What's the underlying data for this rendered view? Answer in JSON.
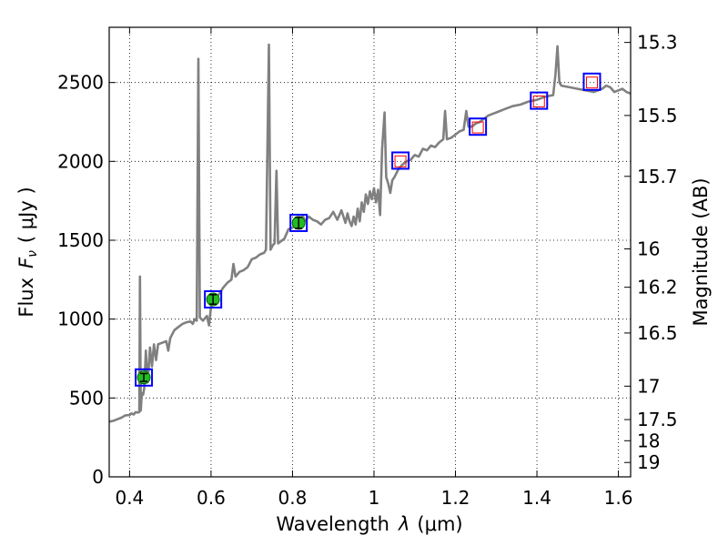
{
  "chart_data": {
    "type": "line",
    "title": "",
    "xlabel_main": "Wavelength",
    "xlabel_symbol": "λ",
    "xlabel_unit": "(μm)",
    "ylabel_main": "Flux",
    "ylabel_symbol": "F",
    "ylabel_subscript": "ν",
    "ylabel_unit": "( μJy )",
    "y2label": "Magnitude (AB)",
    "xlim": [
      0.35,
      1.63
    ],
    "ylim": [
      0,
      2850
    ],
    "grid": true,
    "x_ticks": [
      0.4,
      0.6,
      0.8,
      1.0,
      1.2,
      1.4,
      1.6
    ],
    "x_tick_labels": [
      "0.4",
      "0.6",
      "0.8",
      "1",
      "1.2",
      "1.4",
      "1.6"
    ],
    "y_ticks": [
      0,
      500,
      1000,
      1500,
      2000,
      2500
    ],
    "y_tick_labels": [
      "0",
      "500",
      "1000",
      "1500",
      "2000",
      "2500"
    ],
    "magnitude_ticks": [
      {
        "label": "15.3",
        "flux": 2754
      },
      {
        "label": "15.5",
        "flux": 2291
      },
      {
        "label": "15.7",
        "flux": 1905
      },
      {
        "label": "16",
        "flux": 1445
      },
      {
        "label": "16.2",
        "flux": 1202
      },
      {
        "label": "16.5",
        "flux": 912
      },
      {
        "label": "17",
        "flux": 575
      },
      {
        "label": "17.5",
        "flux": 363
      },
      {
        "label": "18",
        "flux": 229
      },
      {
        "label": "19",
        "flux": 91
      }
    ],
    "series": [
      {
        "name": "spectrum",
        "color": "#808080",
        "points": [
          [
            0.35,
            350
          ],
          [
            0.36,
            355
          ],
          [
            0.37,
            365
          ],
          [
            0.38,
            375
          ],
          [
            0.39,
            390
          ],
          [
            0.4,
            392
          ],
          [
            0.405,
            402
          ],
          [
            0.41,
            395
          ],
          [
            0.415,
            410
          ],
          [
            0.42,
            408
          ],
          [
            0.424,
            410
          ],
          [
            0.4255,
            1270
          ],
          [
            0.4275,
            420
          ],
          [
            0.43,
            530
          ],
          [
            0.433,
            520
          ],
          [
            0.436,
            560
          ],
          [
            0.44,
            800
          ],
          [
            0.444,
            600
          ],
          [
            0.447,
            690
          ],
          [
            0.45,
            820
          ],
          [
            0.455,
            700
          ],
          [
            0.46,
            840
          ],
          [
            0.465,
            740
          ],
          [
            0.47,
            840
          ],
          [
            0.48,
            850
          ],
          [
            0.49,
            860
          ],
          [
            0.495,
            800
          ],
          [
            0.5,
            880
          ],
          [
            0.51,
            930
          ],
          [
            0.52,
            950
          ],
          [
            0.53,
            970
          ],
          [
            0.54,
            980
          ],
          [
            0.55,
            985
          ],
          [
            0.555,
            970
          ],
          [
            0.56,
            1000
          ],
          [
            0.565,
            990
          ],
          [
            0.569,
            2650
          ],
          [
            0.5725,
            1010
          ],
          [
            0.58,
            990
          ],
          [
            0.59,
            1020
          ],
          [
            0.595,
            960
          ],
          [
            0.6,
            1080
          ],
          [
            0.61,
            1120
          ],
          [
            0.62,
            1160
          ],
          [
            0.63,
            1200
          ],
          [
            0.64,
            1230
          ],
          [
            0.65,
            1250
          ],
          [
            0.655,
            1350
          ],
          [
            0.66,
            1270
          ],
          [
            0.67,
            1300
          ],
          [
            0.68,
            1310
          ],
          [
            0.69,
            1330
          ],
          [
            0.7,
            1380
          ],
          [
            0.71,
            1390
          ],
          [
            0.72,
            1410
          ],
          [
            0.73,
            1420
          ],
          [
            0.735,
            1440
          ],
          [
            0.742,
            2740
          ],
          [
            0.746,
            1440
          ],
          [
            0.752,
            1470
          ],
          [
            0.756,
            1480
          ],
          [
            0.7605,
            1940
          ],
          [
            0.7645,
            1480
          ],
          [
            0.77,
            1490
          ],
          [
            0.78,
            1510
          ],
          [
            0.79,
            1570
          ],
          [
            0.8,
            1580
          ],
          [
            0.81,
            1600
          ],
          [
            0.82,
            1590
          ],
          [
            0.825,
            1660
          ],
          [
            0.83,
            1620
          ],
          [
            0.84,
            1650
          ],
          [
            0.85,
            1630
          ],
          [
            0.86,
            1620
          ],
          [
            0.87,
            1600
          ],
          [
            0.88,
            1630
          ],
          [
            0.89,
            1640
          ],
          [
            0.9,
            1680
          ],
          [
            0.91,
            1630
          ],
          [
            0.92,
            1690
          ],
          [
            0.93,
            1610
          ],
          [
            0.935,
            1670
          ],
          [
            0.94,
            1620
          ],
          [
            0.945,
            1590
          ],
          [
            0.95,
            1650
          ],
          [
            0.955,
            1600
          ],
          [
            0.96,
            1700
          ],
          [
            0.965,
            1620
          ],
          [
            0.97,
            1740
          ],
          [
            0.975,
            1680
          ],
          [
            0.98,
            1790
          ],
          [
            0.985,
            1730
          ],
          [
            0.99,
            1810
          ],
          [
            0.995,
            1760
          ],
          [
            1.0,
            1830
          ],
          [
            1.005,
            1740
          ],
          [
            1.01,
            1820
          ],
          [
            1.015,
            1660
          ],
          [
            1.02,
            2080
          ],
          [
            1.026,
            2310
          ],
          [
            1.03,
            1900
          ],
          [
            1.035,
            1860
          ],
          [
            1.04,
            1800
          ],
          [
            1.045,
            1880
          ],
          [
            1.05,
            1900
          ],
          [
            1.06,
            1950
          ],
          [
            1.07,
            1980
          ],
          [
            1.08,
            2000
          ],
          [
            1.09,
            2010
          ],
          [
            1.1,
            2040
          ],
          [
            1.11,
            2030
          ],
          [
            1.12,
            2080
          ],
          [
            1.13,
            2070
          ],
          [
            1.14,
            2100
          ],
          [
            1.15,
            2090
          ],
          [
            1.16,
            2120
          ],
          [
            1.17,
            2140
          ],
          [
            1.1745,
            2320
          ],
          [
            1.179,
            2140
          ],
          [
            1.19,
            2150
          ],
          [
            1.2,
            2170
          ],
          [
            1.21,
            2190
          ],
          [
            1.22,
            2200
          ],
          [
            1.2265,
            2320
          ],
          [
            1.232,
            2220
          ],
          [
            1.24,
            2220
          ],
          [
            1.25,
            2240
          ],
          [
            1.26,
            2250
          ],
          [
            1.27,
            2270
          ],
          [
            1.28,
            2290
          ],
          [
            1.29,
            2300
          ],
          [
            1.3,
            2310
          ],
          [
            1.32,
            2330
          ],
          [
            1.34,
            2350
          ],
          [
            1.36,
            2360
          ],
          [
            1.38,
            2380
          ],
          [
            1.4,
            2390
          ],
          [
            1.42,
            2410
          ],
          [
            1.44,
            2420
          ],
          [
            1.4455,
            2550
          ],
          [
            1.4505,
            2730
          ],
          [
            1.455,
            2500
          ],
          [
            1.46,
            2480
          ],
          [
            1.48,
            2470
          ],
          [
            1.5,
            2460
          ],
          [
            1.52,
            2450
          ],
          [
            1.54,
            2440
          ],
          [
            1.56,
            2460
          ],
          [
            1.57,
            2480
          ],
          [
            1.58,
            2470
          ],
          [
            1.59,
            2440
          ],
          [
            1.6,
            2450
          ],
          [
            1.61,
            2460
          ],
          [
            1.62,
            2440
          ],
          [
            1.63,
            2430
          ]
        ]
      },
      {
        "name": "photometry-filled",
        "color": "#22bb22",
        "points": [
          [
            0.435,
            630
          ],
          [
            0.605,
            1125
          ],
          [
            0.815,
            1610
          ]
        ],
        "errors": [
          25,
          30,
          35
        ]
      },
      {
        "name": "model-squares",
        "color": "#0000ff",
        "points": [
          [
            0.435,
            630
          ],
          [
            0.605,
            1125
          ],
          [
            0.815,
            1610
          ],
          [
            1.065,
            2005
          ],
          [
            1.255,
            2220
          ],
          [
            1.405,
            2385
          ],
          [
            1.535,
            2505
          ]
        ]
      },
      {
        "name": "photometry-open",
        "color": "#ff0000",
        "points": [
          [
            1.065,
            2000
          ],
          [
            1.255,
            2215
          ],
          [
            1.405,
            2380
          ],
          [
            1.535,
            2500
          ]
        ]
      }
    ]
  }
}
